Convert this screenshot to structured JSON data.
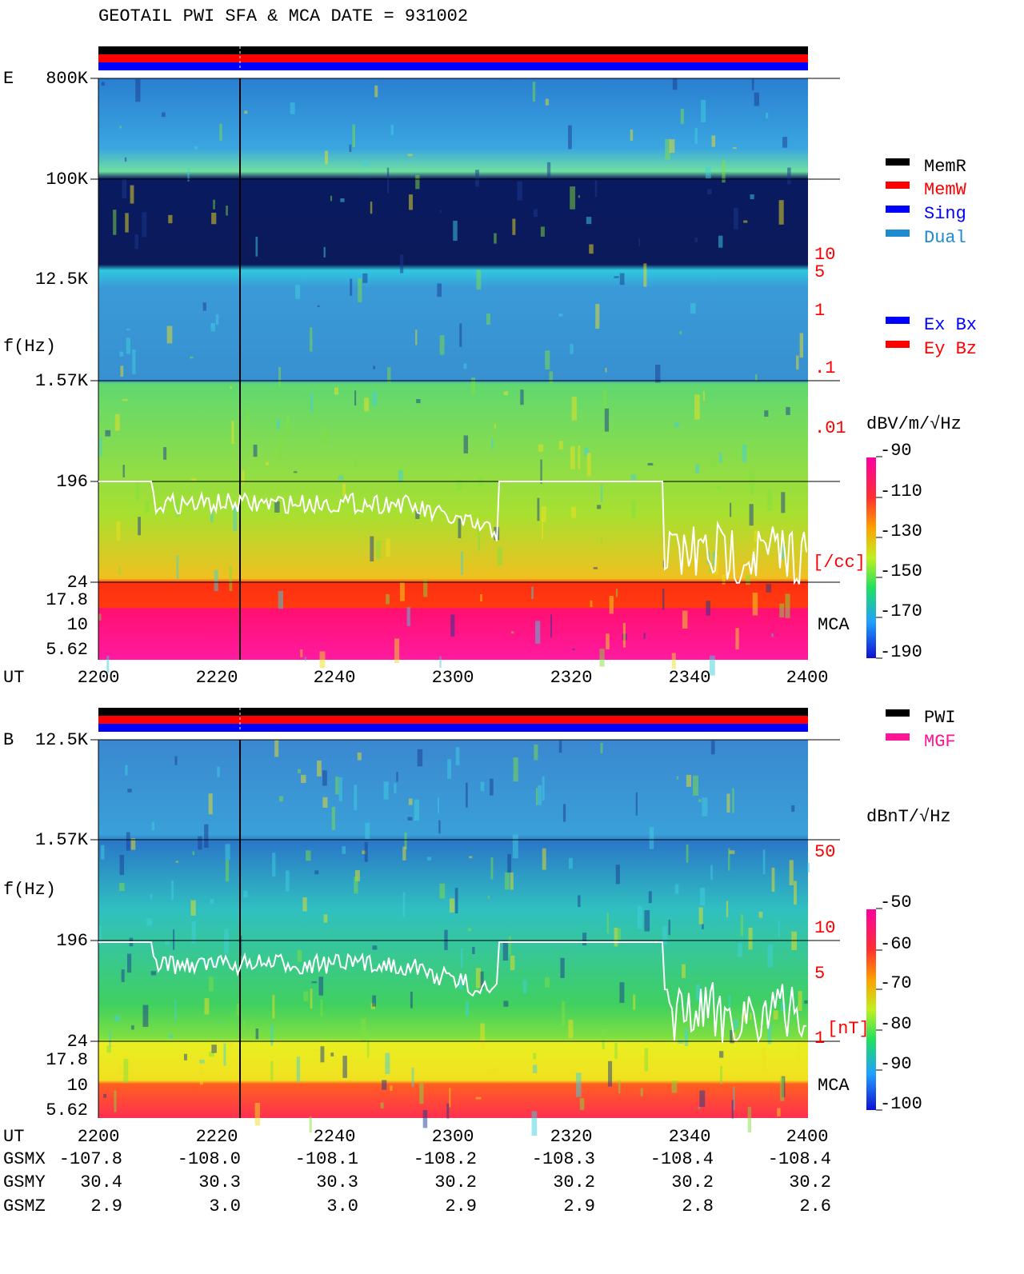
{
  "title": "GEOTAIL  PWI SFA & MCA   DATE = 931002",
  "panel_e": {
    "label": "E",
    "freq_labels": [
      "800K",
      "100K",
      "12.5K",
      "1.57K",
      "196",
      "24",
      "17.8",
      "10",
      "5.62"
    ],
    "axis_label": "f(Hz)",
    "ut_label": "UT",
    "time_labels": [
      "2200",
      "2220",
      "2240",
      "2300",
      "2320",
      "2340",
      "2400"
    ],
    "density_labels": [
      "10",
      "5",
      "1",
      ".1",
      ".01"
    ],
    "density_unit": "[/cc]",
    "mca_label": "MCA",
    "legend_mode": [
      "MemR",
      "MemW",
      "Sing",
      "Dual"
    ],
    "legend_components": [
      "Ex Bx",
      "Ey Bz"
    ],
    "colorbar_title": "dBV/m/√Hz",
    "colorbar_labels": [
      "-90",
      "-110",
      "-130",
      "-150",
      "-170",
      "-190"
    ]
  },
  "panel_b": {
    "label": "B",
    "freq_labels": [
      "12.5K",
      "1.57K",
      "196",
      "24",
      "17.8",
      "10",
      "5.62"
    ],
    "axis_label": "f(Hz)",
    "ut_label": "UT",
    "time_labels": [
      "2200",
      "2220",
      "2240",
      "2300",
      "2320",
      "2340",
      "2400"
    ],
    "field_labels": [
      "50",
      "10",
      "5",
      "1"
    ],
    "field_unit": "[nT]",
    "mca_label": "MCA",
    "legend_source": [
      "PWI",
      "MGF"
    ],
    "colorbar_title": "dBnT/√Hz",
    "colorbar_labels": [
      "-50",
      "-60",
      "-70",
      "-80",
      "-90",
      "-100"
    ]
  },
  "orbit": {
    "rows": [
      {
        "label": "GSMX",
        "values": [
          "-107.8",
          "-108.0",
          "-108.1",
          "-108.2",
          "-108.3",
          "-108.4",
          "-108.4"
        ]
      },
      {
        "label": "GSMY",
        "values": [
          "30.4",
          "30.3",
          "30.3",
          "30.2",
          "30.2",
          "30.2",
          "30.2"
        ]
      },
      {
        "label": "GSMZ",
        "values": [
          "2.9",
          "3.0",
          "3.0",
          "2.9",
          "2.9",
          "2.8",
          "2.6"
        ]
      }
    ]
  }
}
